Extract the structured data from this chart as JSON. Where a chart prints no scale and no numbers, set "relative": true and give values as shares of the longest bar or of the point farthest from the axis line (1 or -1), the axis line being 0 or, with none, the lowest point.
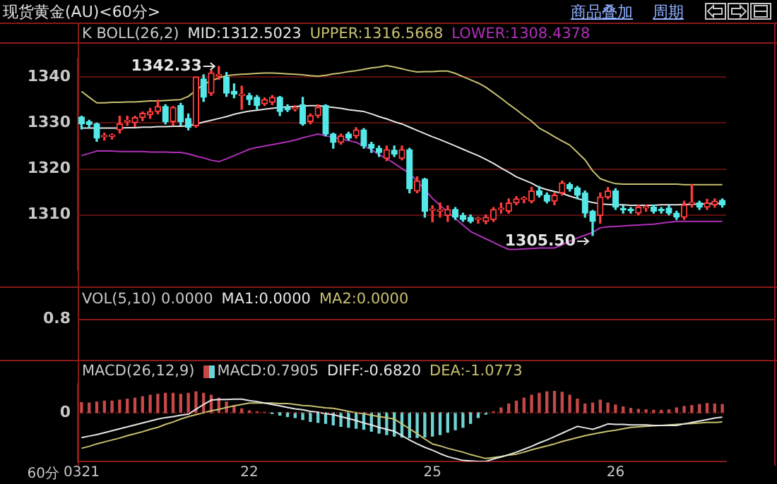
{
  "chart_data": [
    {
      "type": "candlestick",
      "title": "现货黄金(AU)<60分>",
      "subtitle": "K  BOLL(26,2)",
      "categories": [
        "0321",
        null,
        null,
        null,
        null,
        null,
        null,
        null,
        null,
        null,
        null,
        null,
        null,
        null,
        null,
        null,
        null,
        null,
        null,
        null,
        null,
        null,
        "22",
        null,
        null,
        null,
        null,
        null,
        null,
        null,
        null,
        null,
        null,
        null,
        null,
        null,
        null,
        null,
        null,
        null,
        null,
        null,
        null,
        null,
        null,
        null,
        "25",
        null,
        null,
        null,
        null,
        null,
        null,
        null,
        null,
        null,
        null,
        null,
        null,
        null,
        null,
        null,
        null,
        null,
        null,
        null,
        null,
        null,
        null,
        null,
        "26",
        null,
        null,
        null,
        null,
        null,
        null,
        null,
        null,
        null,
        null,
        null,
        null,
        null,
        null
      ],
      "ohlc": [
        [
          1331.3,
          1331.5,
          1328.7,
          1329.8
        ],
        [
          1330.3,
          1330.6,
          1329,
          1329.7
        ],
        [
          1329.8,
          1330,
          1326,
          1326.7
        ],
        [
          1327,
          1327.8,
          1326.3,
          1327.3
        ],
        [
          1327.1,
          1327.6,
          1326.5,
          1327.4
        ],
        [
          1328.5,
          1331.5,
          1327.8,
          1329.8
        ],
        [
          1330.3,
          1331.5,
          1329.5,
          1330.5
        ],
        [
          1330.1,
          1331.5,
          1329.2,
          1331.2
        ],
        [
          1331.2,
          1332.4,
          1330.5,
          1332.1
        ],
        [
          1331.8,
          1333.2,
          1331,
          1332.5
        ],
        [
          1332.5,
          1335,
          1332,
          1333.6
        ],
        [
          1333.6,
          1334,
          1329.8,
          1330.3
        ],
        [
          1330.3,
          1333.6,
          1329.5,
          1333.4
        ],
        [
          1333.8,
          1334.3,
          1329.5,
          1330.3
        ],
        [
          1331,
          1332,
          1328.5,
          1329.1
        ],
        [
          1329.4,
          1340,
          1329.1,
          1340
        ],
        [
          1339.6,
          1340.5,
          1334.7,
          1335.6
        ],
        [
          1336.5,
          1341.5,
          1336,
          1340.9
        ],
        [
          1340.3,
          1342.33,
          1339.5,
          1340.6
        ],
        [
          1340,
          1341,
          1335.8,
          1336.5
        ],
        [
          1336.9,
          1338.5,
          1335.5,
          1336.3
        ],
        [
          1336,
          1338,
          1333,
          1336.1
        ],
        [
          1336,
          1336.5,
          1334,
          1335.1
        ],
        [
          1335.6,
          1336,
          1333,
          1333.8
        ],
        [
          1334.2,
          1335.5,
          1333.8,
          1335.1
        ],
        [
          1334.5,
          1336,
          1334,
          1335.6
        ],
        [
          1335.6,
          1335.8,
          1331.6,
          1332.5
        ],
        [
          1333.4,
          1334,
          1332.5,
          1332.9
        ],
        [
          1333,
          1333.8,
          1332.6,
          1333.3
        ],
        [
          1334,
          1335.6,
          1329.5,
          1329.8
        ],
        [
          1330.3,
          1332,
          1329.8,
          1331.6
        ],
        [
          1331.6,
          1334,
          1331.2,
          1333.4
        ],
        [
          1333.8,
          1334,
          1327.2,
          1327.6
        ],
        [
          1327.6,
          1327.8,
          1324.5,
          1325.8
        ],
        [
          1325.8,
          1327.6,
          1325.4,
          1327.2
        ],
        [
          1327.6,
          1328,
          1326.3,
          1326.7
        ],
        [
          1327.2,
          1329,
          1326.7,
          1328.5
        ],
        [
          1328.5,
          1328.8,
          1324.5,
          1325
        ],
        [
          1325.4,
          1325.8,
          1323.6,
          1324.5
        ],
        [
          1324.5,
          1325,
          1322.7,
          1323.6
        ],
        [
          1322.3,
          1325,
          1321.8,
          1324.2
        ],
        [
          1324.1,
          1325,
          1322.7,
          1323.2
        ],
        [
          1322.3,
          1325,
          1322,
          1324.2
        ],
        [
          1324.2,
          1324.5,
          1314.8,
          1315.7
        ],
        [
          1315.2,
          1318.3,
          1314.8,
          1317.4
        ],
        [
          1317.8,
          1318,
          1309.5,
          1310.8
        ],
        [
          1311,
          1312,
          1308.5,
          1311.2
        ],
        [
          1310.8,
          1312.6,
          1309.5,
          1311
        ],
        [
          1309.9,
          1312,
          1308.6,
          1311.2
        ],
        [
          1311.2,
          1311.6,
          1309,
          1309.5
        ],
        [
          1309.9,
          1310.4,
          1308.6,
          1309
        ],
        [
          1309.5,
          1310,
          1308.3,
          1308.6
        ],
        [
          1309,
          1309.5,
          1308.2,
          1309.1
        ],
        [
          1308.6,
          1310,
          1308.1,
          1309.5
        ],
        [
          1309,
          1311.6,
          1308.6,
          1311.2
        ],
        [
          1311.2,
          1312.6,
          1310.4,
          1311.3
        ],
        [
          1310.8,
          1313.5,
          1310.4,
          1312.6
        ],
        [
          1312.6,
          1314,
          1312.2,
          1313.5
        ],
        [
          1313.4,
          1314,
          1312.6,
          1313.5
        ],
        [
          1313,
          1316,
          1312.6,
          1315.2
        ],
        [
          1315.2,
          1316.2,
          1313.9,
          1314.3
        ],
        [
          1314.3,
          1314.8,
          1312.6,
          1313
        ],
        [
          1313,
          1314.8,
          1312.2,
          1314.3
        ],
        [
          1314.8,
          1317.4,
          1314.3,
          1317
        ],
        [
          1316.6,
          1317,
          1315.2,
          1315.7
        ],
        [
          1315.9,
          1316.2,
          1313.5,
          1314.3
        ],
        [
          1314.8,
          1315.2,
          1309.5,
          1310.4
        ],
        [
          1310.8,
          1311,
          1305.5,
          1308.6
        ],
        [
          1309.9,
          1314.8,
          1308.2,
          1313.9
        ],
        [
          1313.9,
          1316,
          1313.5,
          1315.2
        ],
        [
          1315.2,
          1315.7,
          1311.2,
          1311.7
        ],
        [
          1311.2,
          1312,
          1310.4,
          1311.1
        ],
        [
          1311,
          1311.6,
          1310.4,
          1310.9
        ],
        [
          1310.4,
          1312.2,
          1310,
          1311.7
        ],
        [
          1311.5,
          1312.2,
          1310.8,
          1311.5
        ],
        [
          1311.7,
          1312.2,
          1310.4,
          1310.8
        ],
        [
          1311,
          1311.6,
          1310.4,
          1310.9
        ],
        [
          1311.5,
          1312,
          1310,
          1310.4
        ],
        [
          1310.4,
          1310.8,
          1309,
          1309.5
        ],
        [
          1309.5,
          1313,
          1309,
          1312.2
        ],
        [
          1312.4,
          1316.6,
          1311.7,
          1312.6
        ],
        [
          1312.6,
          1313,
          1311.2,
          1311.7
        ],
        [
          1311.7,
          1313.4,
          1311.2,
          1312.6
        ],
        [
          1312.2,
          1313.5,
          1311.7,
          1313
        ],
        [
          1313.2,
          1313.5,
          1311.7,
          1312.2
        ]
      ],
      "series": [
        {
          "type": "line",
          "name": "MID:1312.5023",
          "color": "#e6e6e6",
          "values": [
            1328.9,
            1328.9,
            1328.9,
            1328.9,
            1328.9,
            1328.9,
            1329.0,
            1329.0,
            1329.1,
            1329.1,
            1329.2,
            1329.2,
            1329.3,
            1329.3,
            1329.4,
            1329.8,
            1330.2,
            1330.6,
            1331.0,
            1331.4,
            1331.9,
            1332.3,
            1332.6,
            1332.8,
            1333.0,
            1333.2,
            1333.4,
            1333.5,
            1333.6,
            1333.7,
            1333.8,
            1333.8,
            1333.6,
            1333.4,
            1333.2,
            1332.9,
            1332.7,
            1332.5,
            1332.0,
            1331.4,
            1330.9,
            1330.3,
            1329.8,
            1329.1,
            1328.4,
            1327.7,
            1327.0,
            1326.4,
            1325.7,
            1325.0,
            1324.3,
            1323.6,
            1322.9,
            1322.1,
            1321.2,
            1320.2,
            1319.3,
            1318.3,
            1317.6,
            1316.9,
            1316.0,
            1315.5,
            1315.1,
            1314.7,
            1314.1,
            1313.6,
            1313.1,
            1312.7,
            1312.4,
            1312.3,
            1312.2,
            1312.2,
            1312.1,
            1312.1,
            1312.1,
            1312.1,
            1312.2,
            1312.2,
            1312.2,
            1312.3,
            1312.3,
            1312.4,
            1312.4,
            1312.5,
            1312.5
          ]
        },
        {
          "type": "line",
          "name": "UPPER:1316.5668",
          "color": "#c8c070",
          "values": [
            1336.9,
            1335.6,
            1334.4,
            1334.4,
            1334.5,
            1334.5,
            1334.6,
            1334.6,
            1334.7,
            1334.8,
            1334.8,
            1334.9,
            1335.0,
            1335.1,
            1335.8,
            1337.1,
            1338.4,
            1339.2,
            1339.8,
            1340.3,
            1340.5,
            1340.6,
            1340.7,
            1340.8,
            1340.9,
            1340.9,
            1340.8,
            1340.7,
            1340.6,
            1340.5,
            1340.3,
            1340.2,
            1340.4,
            1340.7,
            1340.9,
            1341.2,
            1341.4,
            1341.7,
            1342.0,
            1342.2,
            1342.5,
            1342.2,
            1341.8,
            1341.4,
            1341.1,
            1341.2,
            1341.2,
            1341.3,
            1341.3,
            1340.8,
            1340.1,
            1339.4,
            1338.7,
            1337.8,
            1336.6,
            1335.4,
            1334.1,
            1332.9,
            1331.6,
            1330.4,
            1328.9,
            1328.0,
            1327.0,
            1326.1,
            1325.2,
            1323.6,
            1322.0,
            1319.6,
            1317.9,
            1317.3,
            1316.8,
            1316.7,
            1316.7,
            1316.7,
            1316.7,
            1316.7,
            1316.7,
            1316.7,
            1316.7,
            1316.6,
            1316.6,
            1316.6,
            1316.6,
            1316.6,
            1316.6
          ]
        },
        {
          "type": "line",
          "name": "LOWER:1308.4378",
          "color": "#b030b8",
          "values": [
            1322.9,
            1323.4,
            1323.9,
            1323.9,
            1323.9,
            1323.8,
            1323.8,
            1323.8,
            1323.8,
            1323.7,
            1323.7,
            1323.7,
            1323.6,
            1323.6,
            1323.3,
            1322.8,
            1322.4,
            1321.9,
            1321.6,
            1322.2,
            1322.9,
            1323.6,
            1324.3,
            1324.7,
            1325.0,
            1325.3,
            1325.6,
            1325.9,
            1326.3,
            1326.8,
            1327.2,
            1327.6,
            1327.2,
            1326.9,
            1326.5,
            1326.2,
            1325.8,
            1325.0,
            1324.2,
            1323.1,
            1322.3,
            1321.2,
            1320.1,
            1319.0,
            1317.4,
            1315.5,
            1313.6,
            1312.1,
            1310.6,
            1309.2,
            1307.8,
            1306.4,
            1305.6,
            1304.8,
            1304.0,
            1303.2,
            1302.5,
            1302.5,
            1302.6,
            1302.7,
            1302.8,
            1302.8,
            1302.8,
            1303.5,
            1304.3,
            1305.0,
            1305.6,
            1306.2,
            1307.2,
            1307.4,
            1307.5,
            1307.6,
            1307.7,
            1307.8,
            1307.9,
            1308.0,
            1308.2,
            1308.4,
            1308.6,
            1308.6,
            1308.6,
            1308.6,
            1308.6,
            1308.6,
            1308.6
          ]
        }
      ],
      "ylim": [
        1298,
        1344
      ],
      "yticks": [
        1310,
        1320,
        1330,
        1340
      ],
      "grid": "y",
      "legend": "top left",
      "tick_labels": "y",
      "annotations": [
        "1342.33",
        "1305.50",
        "商品叠加",
        "周期"
      ]
    },
    {
      "type": "other",
      "title": "VOL(5,10) 0.0000",
      "annotations": [
        "MA1:0.0000",
        "MA2:0.0000",
        "0.8"
      ]
    },
    {
      "type": "bar",
      "relative": true,
      "title": "MACD(26,12,9)",
      "xlabel": "60分",
      "categories": [
        "0321",
        null,
        null,
        null,
        null,
        null,
        null,
        null,
        null,
        null,
        null,
        null,
        null,
        null,
        null,
        null,
        null,
        null,
        null,
        null,
        null,
        null,
        "22",
        null,
        null,
        null,
        null,
        null,
        null,
        null,
        null,
        null,
        null,
        null,
        null,
        null,
        null,
        null,
        null,
        null,
        null,
        null,
        null,
        null,
        null,
        null,
        "25",
        null,
        null,
        null,
        null,
        null,
        null,
        null,
        null,
        null,
        null,
        null,
        null,
        null,
        null,
        null,
        null,
        null,
        null,
        null,
        null,
        null,
        null,
        null,
        "26",
        null,
        null,
        null,
        null,
        null,
        null,
        null,
        null,
        null,
        null,
        null,
        null,
        null,
        null
      ],
      "series": [
        {
          "name": "MACD:0.7905",
          "values": [
            0.21,
            0.2,
            0.22,
            0.24,
            0.24,
            0.26,
            0.28,
            0.3,
            0.33,
            0.36,
            0.38,
            0.4,
            0.4,
            0.38,
            0.4,
            0.43,
            0.4,
            0.36,
            0.3,
            0.22,
            0.15,
            0.08,
            0.04,
            0.02,
            0.01,
            -0.02,
            -0.05,
            -0.08,
            -0.1,
            -0.14,
            -0.18,
            -0.2,
            -0.22,
            -0.25,
            -0.28,
            -0.3,
            -0.32,
            -0.34,
            -0.38,
            -0.42,
            -0.45,
            -0.48,
            -0.5,
            -0.51,
            -0.51,
            -0.5,
            -0.48,
            -0.45,
            -0.4,
            -0.35,
            -0.3,
            -0.22,
            -0.1,
            -0.03,
            0.02,
            0.1,
            0.18,
            0.24,
            0.3,
            0.36,
            0.4,
            0.43,
            0.44,
            0.42,
            0.36,
            0.28,
            0.18,
            0.2,
            0.26,
            0.2,
            0.16,
            0.12,
            0.09,
            0.07,
            0.06,
            0.05,
            0.05,
            0.06,
            0.1,
            0.13,
            0.15,
            0.17,
            0.19,
            0.18,
            0.17
          ],
          "colors": [
            "#c84848",
            "#c84848",
            "#c84848",
            "#c84848",
            "#c84848",
            "#c84848",
            "#c84848",
            "#c84848",
            "#c84848",
            "#c84848",
            "#c84848",
            "#c84848",
            "#c84848",
            "#c84848",
            "#c84848",
            "#c84848",
            "#c84848",
            "#c84848",
            "#c84848",
            "#c84848",
            "#c84848",
            "#c84848",
            "#c84848",
            "#c84848",
            "#c84848",
            "#6cd4d4",
            "#6cd4d4",
            "#6cd4d4",
            "#6cd4d4",
            "#6cd4d4",
            "#6cd4d4",
            "#6cd4d4",
            "#6cd4d4",
            "#6cd4d4",
            "#6cd4d4",
            "#6cd4d4",
            "#6cd4d4",
            "#6cd4d4",
            "#6cd4d4",
            "#6cd4d4",
            "#6cd4d4",
            "#6cd4d4",
            "#6cd4d4",
            "#6cd4d4",
            "#6cd4d4",
            "#6cd4d4",
            "#6cd4d4",
            "#6cd4d4",
            "#6cd4d4",
            "#6cd4d4",
            "#6cd4d4",
            "#6cd4d4",
            "#6cd4d4",
            "#6cd4d4",
            "#c84848",
            "#c84848",
            "#c84848",
            "#c84848",
            "#c84848",
            "#c84848",
            "#c84848",
            "#c84848",
            "#c84848",
            "#c84848",
            "#c84848",
            "#c84848",
            "#c84848",
            "#c84848",
            "#c84848",
            "#c84848",
            "#c84848",
            "#c84848",
            "#c84848",
            "#c84848",
            "#c84848",
            "#c84848",
            "#c84848",
            "#c84848",
            "#c84848",
            "#c84848",
            "#c84848",
            "#c84848",
            "#c84848",
            "#c84848",
            "#c84848"
          ]
        },
        {
          "type": "line",
          "name": "DIFF:-0.6820",
          "color": "#e6e6e6",
          "values": [
            -0.51,
            -0.48,
            -0.45,
            -0.41,
            -0.37,
            -0.33,
            -0.29,
            -0.25,
            -0.21,
            -0.17,
            -0.13,
            -0.1,
            -0.08,
            -0.05,
            -0.03,
            0.07,
            0.17,
            0.26,
            0.27,
            0.27,
            0.28,
            0.28,
            0.25,
            0.23,
            0.2,
            0.17,
            0.14,
            0.11,
            0.08,
            0.06,
            0.03,
            0.01,
            -0.02,
            -0.04,
            -0.08,
            -0.12,
            -0.16,
            -0.21,
            -0.25,
            -0.3,
            -0.34,
            -0.38,
            -0.47,
            -0.56,
            -0.64,
            -0.71,
            -0.77,
            -0.84,
            -0.9,
            -0.94,
            -0.98,
            -0.99,
            -1,
            -1,
            -0.95,
            -0.91,
            -0.86,
            -0.81,
            -0.75,
            -0.69,
            -0.62,
            -0.56,
            -0.49,
            -0.42,
            -0.35,
            -0.28,
            -0.31,
            -0.34,
            -0.29,
            -0.23,
            -0.24,
            -0.24,
            -0.25,
            -0.25,
            -0.25,
            -0.26,
            -0.26,
            -0.26,
            -0.26,
            -0.23,
            -0.2,
            -0.17,
            -0.14,
            -0.11,
            -0.09
          ]
        },
        {
          "type": "line",
          "name": "DEA:-1.0773",
          "color": "#c8c070",
          "values": [
            -0.73,
            -0.69,
            -0.64,
            -0.6,
            -0.56,
            -0.52,
            -0.47,
            -0.43,
            -0.39,
            -0.34,
            -0.3,
            -0.24,
            -0.19,
            -0.13,
            -0.08,
            -0.04,
            0,
            0.04,
            0.07,
            0.11,
            0.14,
            0.17,
            0.2,
            0.2,
            0.2,
            0.2,
            0.19,
            0.19,
            0.17,
            0.15,
            0.14,
            0.12,
            0.1,
            0.09,
            0.06,
            0.03,
            0,
            -0.02,
            -0.05,
            -0.08,
            -0.1,
            -0.13,
            -0.23,
            -0.33,
            -0.43,
            -0.54,
            -0.64,
            -0.68,
            -0.73,
            -0.77,
            -0.81,
            -0.86,
            -0.9,
            -0.94,
            -0.92,
            -0.9,
            -0.87,
            -0.85,
            -0.81,
            -0.76,
            -0.72,
            -0.68,
            -0.64,
            -0.59,
            -0.55,
            -0.51,
            -0.47,
            -0.44,
            -0.41,
            -0.38,
            -0.36,
            -0.33,
            -0.3,
            -0.29,
            -0.28,
            -0.27,
            -0.26,
            -0.25,
            -0.24,
            -0.23,
            -0.22,
            -0.21,
            -0.2,
            -0.2,
            -0.19
          ]
        }
      ],
      "ref_lines": [
        {
          "axis": "y",
          "value": 0,
          "label": "0",
          "color": "#8b1a1a",
          "line_style": "dotted"
        }
      ],
      "legend": "top left",
      "tick_labels": "x"
    }
  ]
}
